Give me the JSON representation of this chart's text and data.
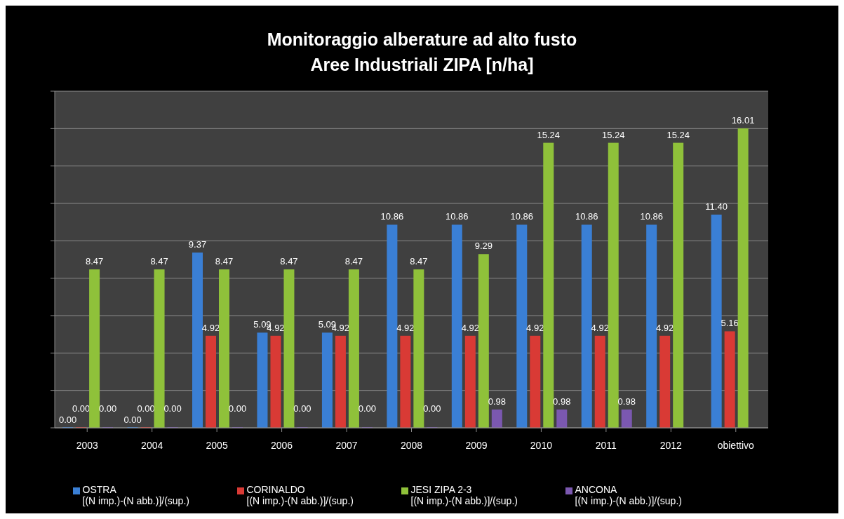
{
  "chart_data": {
    "type": "bar",
    "title": "Monitoraggio alberature ad alto fusto\nAree Industriali ZIPA [n/ha]",
    "categories": [
      "2003",
      "2004",
      "2005",
      "2006",
      "2007",
      "2008",
      "2009",
      "2010",
      "2011",
      "2012",
      "obiettivo"
    ],
    "series": [
      {
        "name": "OSTRA\n[(N imp.)-(N abb.)]/(sup.)",
        "color": "#3a7fd5",
        "values": [
          0,
          0,
          9.37,
          5.09,
          5.09,
          10.86,
          10.86,
          10.86,
          10.86,
          10.86,
          11.4
        ],
        "value_labels": [
          "0.00",
          "0.00",
          "9.37",
          "5.09",
          "5.09",
          "10.86",
          "10.86",
          "10.86",
          "10.86",
          "10.86",
          "11.40"
        ]
      },
      {
        "name": "CORINALDO\n[(N imp.)-(N abb.)]/(sup.)",
        "color": "#d93a35",
        "values": [
          0,
          0,
          4.92,
          4.92,
          4.92,
          4.92,
          4.92,
          4.92,
          4.92,
          4.92,
          5.16
        ],
        "value_labels": [
          "0.00",
          "0.00",
          "4.92",
          "4.92",
          "4.92",
          "4.92",
          "4.92",
          "4.92",
          "4.92",
          "4.92",
          "5.16"
        ]
      },
      {
        "name": "JESI ZIPA 2-3\n[(N imp.)-(N abb.)]/(sup.)",
        "color": "#8fc13a",
        "values": [
          8.47,
          8.47,
          8.47,
          8.47,
          8.47,
          8.47,
          9.29,
          15.24,
          15.24,
          15.24,
          16.01
        ],
        "value_labels": [
          "8.47",
          "8.47",
          "8.47",
          "8.47",
          "8.47",
          "8.47",
          "9.29",
          "15.24",
          "15.24",
          "15.24",
          "16.01"
        ]
      },
      {
        "name": "ANCONA\n[(N imp.)-(N abb.)]/(sup.)",
        "color": "#7b58b0",
        "values": [
          0,
          0,
          0,
          0,
          0,
          0,
          0.98,
          0.98,
          0.98,
          null,
          null
        ],
        "value_labels": [
          "0.00",
          "0.00",
          "0.00",
          "0.00",
          "0.00",
          "0.00",
          "0.98",
          "0.98",
          "0.98",
          null,
          null
        ]
      }
    ],
    "ylim": [
      0,
      18
    ],
    "yticks": [
      {
        "value": 0,
        "label": null
      },
      {
        "value": 2,
        "label": null
      },
      {
        "value": 4,
        "label": null
      },
      {
        "value": 6,
        "label": null
      },
      {
        "value": 8,
        "label": null
      },
      {
        "value": 10,
        "label": null
      },
      {
        "value": 12,
        "label": null
      },
      {
        "value": 14,
        "label": null
      },
      {
        "value": 16,
        "label": null
      },
      {
        "value": 18,
        "label": null
      }
    ],
    "tick_labels": "x",
    "grid": "y",
    "legend": "bottom"
  }
}
